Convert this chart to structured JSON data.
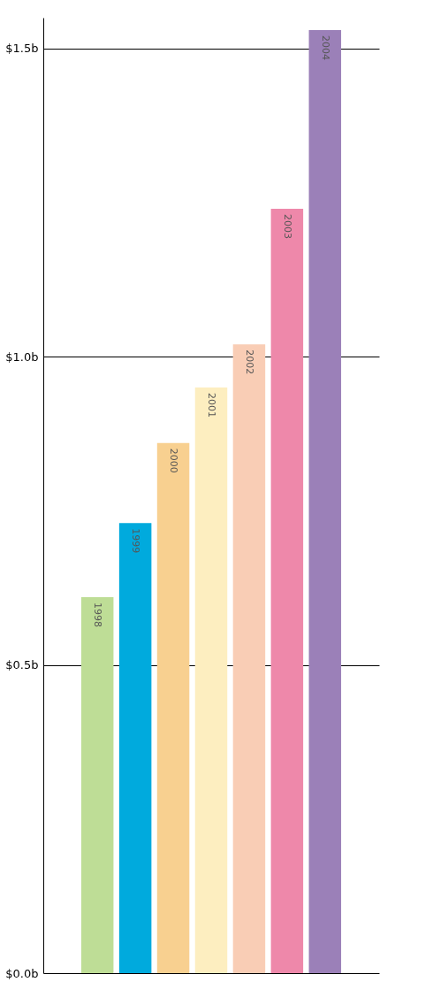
{
  "chart_data": {
    "type": "bar",
    "categories": [
      "1998",
      "1999",
      "2000",
      "2001",
      "2002",
      "2003",
      "2004"
    ],
    "values": [
      0.61,
      0.73,
      0.86,
      0.95,
      1.02,
      1.24,
      1.53
    ],
    "colors": [
      "#bedd96",
      "#00aadd",
      "#f8d090",
      "#fdeec0",
      "#f9cdb5",
      "#ee88aa",
      "#9b80b8"
    ],
    "ylim": [
      0,
      1.55
    ],
    "yticks": [
      {
        "value": 0,
        "label": "$0.0b"
      },
      {
        "value": 0.5,
        "label": "$0.5b"
      },
      {
        "value": 1.0,
        "label": "$1.0b"
      },
      {
        "value": 1.5,
        "label": "$1.5b"
      }
    ],
    "grid": "y",
    "tick_labels": "y"
  }
}
